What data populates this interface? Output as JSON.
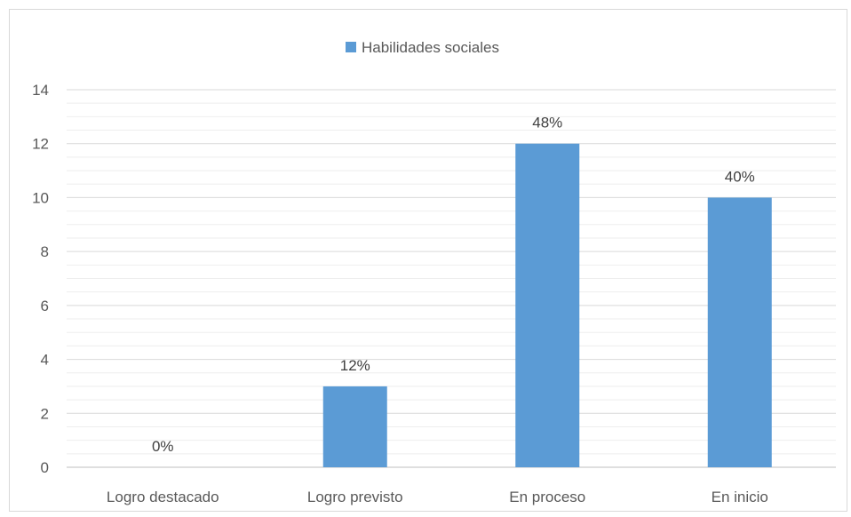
{
  "chart_data": {
    "type": "bar",
    "categories": [
      "Logro destacado",
      "Logro previsto",
      "En proceso",
      "En inicio"
    ],
    "series": [
      {
        "name": "Habilidades sociales",
        "values": [
          0,
          3,
          12,
          10
        ],
        "color": "#5b9bd5"
      }
    ],
    "data_labels": [
      "0%",
      "12%",
      "48%",
      "40%"
    ],
    "ylim": [
      0,
      14
    ],
    "y_ticks": [
      0,
      2,
      4,
      6,
      8,
      10,
      12,
      14
    ],
    "legend_position": "top",
    "grid": true,
    "title": "",
    "xlabel": "",
    "ylabel": ""
  }
}
